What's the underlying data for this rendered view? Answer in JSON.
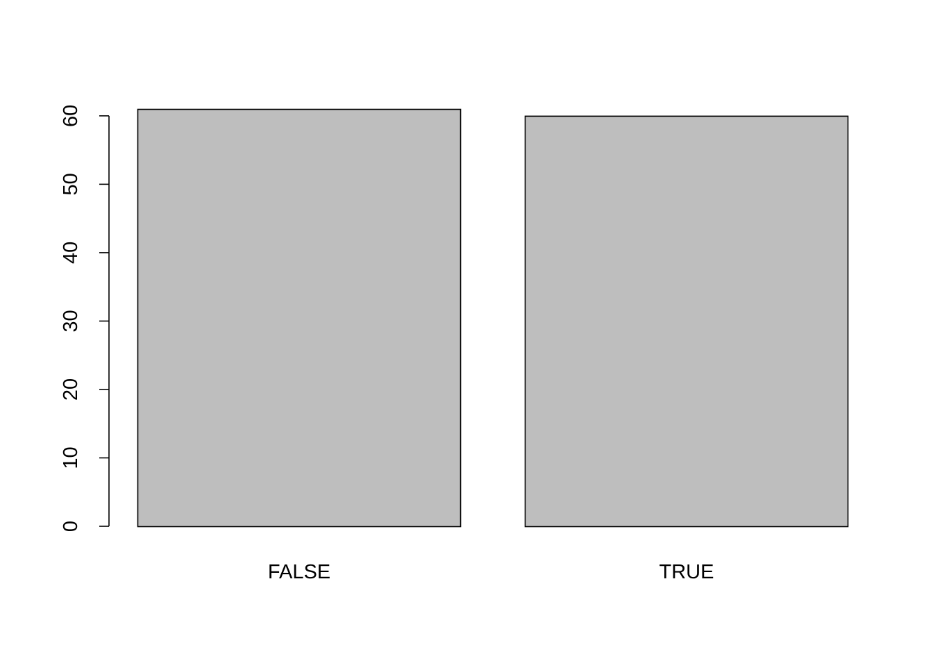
{
  "chart_data": {
    "type": "bar",
    "categories": [
      "FALSE",
      "TRUE"
    ],
    "values": [
      61,
      60
    ],
    "ylim": [
      0,
      61
    ],
    "yticks": [
      0,
      10,
      20,
      30,
      40,
      50,
      60
    ],
    "title": "",
    "xlabel": "",
    "ylabel": "",
    "grid": false,
    "bar_color": "#bebebe",
    "border_color": "#000000"
  }
}
